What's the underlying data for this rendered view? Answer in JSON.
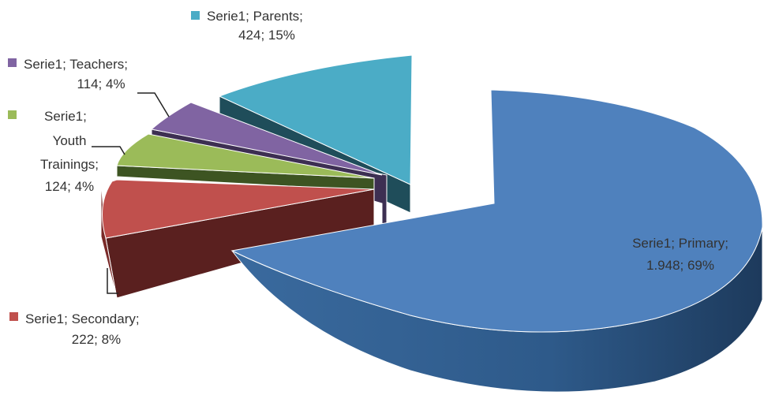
{
  "chart_data": {
    "type": "pie",
    "title": "",
    "series_name": "Serie1",
    "show_legend_keys": true,
    "slices": [
      {
        "name": "Primary",
        "value": 1948,
        "value_label": "1.948",
        "percent": 69,
        "color": "#4f81bd"
      },
      {
        "name": "Secondary",
        "value": 222,
        "value_label": "222",
        "percent": 8,
        "color": "#c0504d"
      },
      {
        "name": "Youth Trainings",
        "value": 124,
        "value_label": "124",
        "percent": 4,
        "color": "#9bbb59"
      },
      {
        "name": "Teachers",
        "value": 114,
        "value_label": "114",
        "percent": 4,
        "color": "#8064a2"
      },
      {
        "name": "Parents",
        "value": 424,
        "value_label": "424",
        "percent": 15,
        "color": "#4bacc6"
      }
    ],
    "labels": {
      "primary": [
        "Serie1; Primary;",
        "1.948; 69%"
      ],
      "secondary": [
        "Serie1; Secondary;",
        "222; 8%"
      ],
      "youth": [
        "Serie1;",
        "Youth",
        "Trainings;",
        "124; 4%"
      ],
      "teachers": [
        "Serie1; Teachers;",
        "114; 4%"
      ],
      "parents": [
        "Serie1; Parents;",
        "424; 15%"
      ]
    }
  }
}
